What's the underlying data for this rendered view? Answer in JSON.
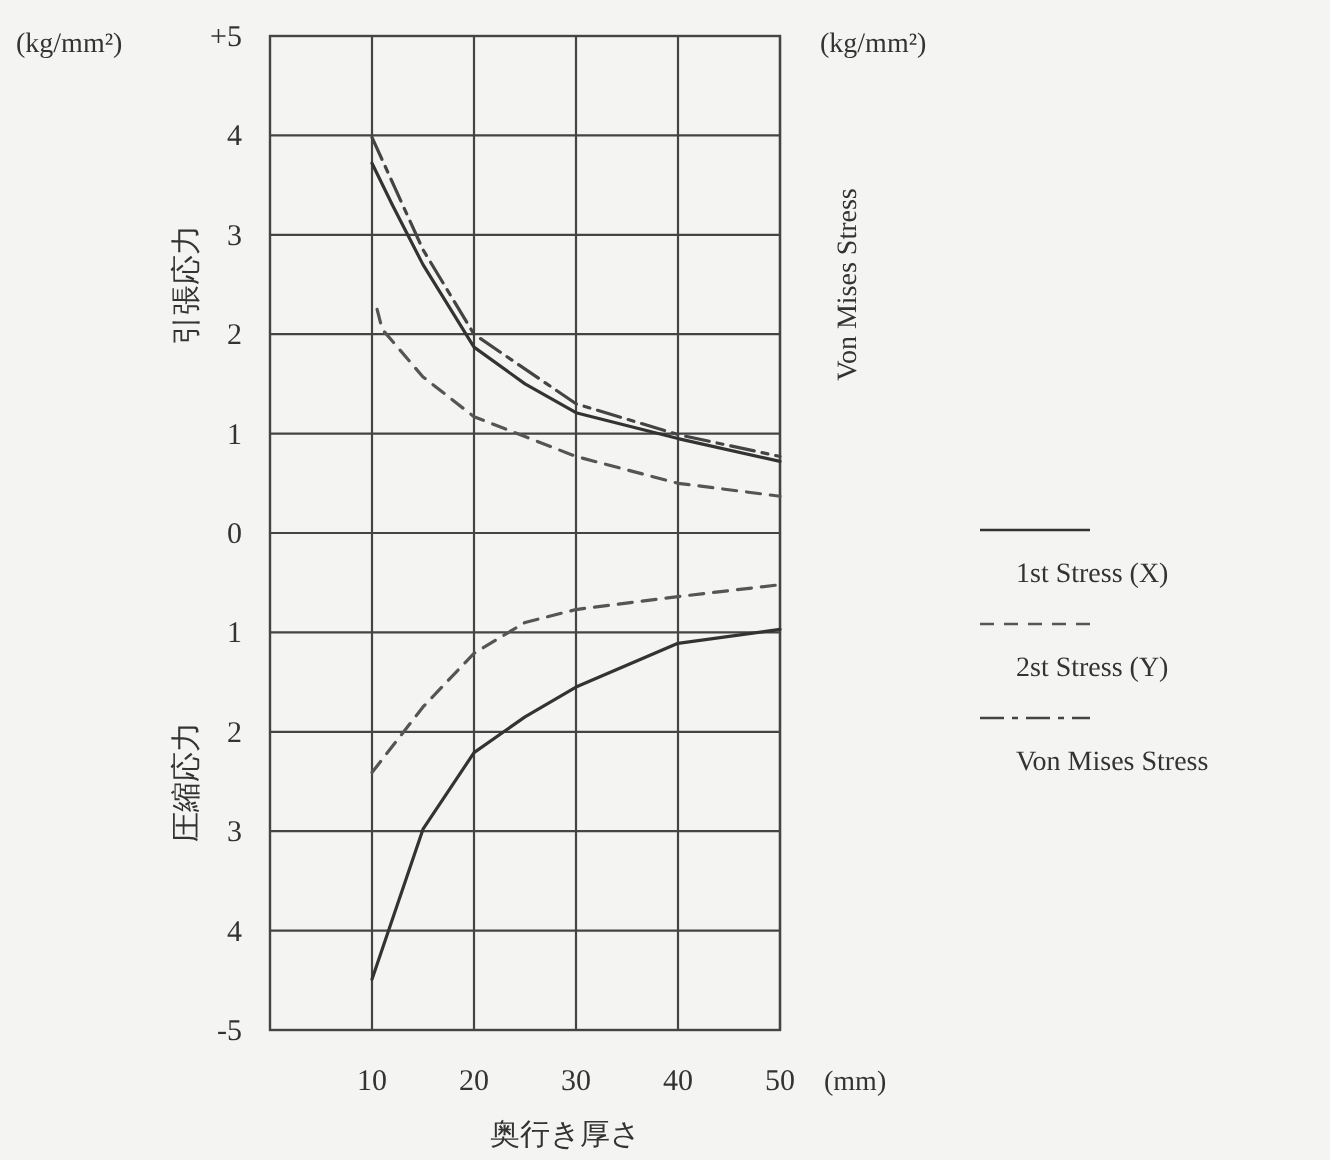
{
  "chart_data": {
    "type": "line",
    "xlabel": "奥行き厚さ",
    "ylabel": "引張応力",
    "y2label": "Von Mises Stress",
    "annotations": [
      "(kg/mm²)",
      "(kg/mm²)",
      "圧縮応力",
      "(mm)"
    ],
    "xlim": [
      0,
      50
    ],
    "xticks": [
      10,
      20,
      30,
      40,
      50
    ],
    "ylim": [
      -5,
      5
    ],
    "yticks": [
      {
        "value": 5,
        "label": "+5"
      },
      4,
      3,
      2,
      1,
      0,
      {
        "value": -1,
        "label": "1"
      },
      {
        "value": -2,
        "label": "2"
      },
      {
        "value": -3,
        "label": "3"
      },
      {
        "value": -4,
        "label": "4"
      },
      -5
    ],
    "grid": true,
    "legend": "right",
    "series": [
      {
        "name": "1st Stress (X)",
        "color": "#333333",
        "line_style": "solid",
        "x": [
          10,
          12,
          15,
          20,
          25,
          30,
          40,
          50
        ],
        "values": [
          3.72,
          3.3,
          2.7,
          1.87,
          1.5,
          1.21,
          0.95,
          0.72
        ]
      },
      {
        "name": "2st Stress (Y)",
        "color": "#555555",
        "line_style": "dashed",
        "x": [
          10.5,
          11,
          15,
          20,
          25,
          30,
          40,
          50
        ],
        "values": [
          2.25,
          2.05,
          1.57,
          1.17,
          0.97,
          0.77,
          0.5,
          0.37
        ]
      },
      {
        "name": "Von Mises Stress",
        "color": "#444444",
        "line_style": "dashdot",
        "x": [
          10,
          15,
          20,
          30,
          40,
          50
        ],
        "values": [
          3.98,
          2.85,
          2.0,
          1.3,
          0.99,
          0.77
        ]
      },
      {
        "color": "#333333",
        "line_style": "solid",
        "x": [
          10,
          15,
          20,
          25,
          30,
          40,
          50
        ],
        "values": [
          -4.49,
          -2.98,
          -2.21,
          -1.85,
          -1.55,
          -1.11,
          -0.97
        ]
      },
      {
        "color": "#555555",
        "line_style": "dashed",
        "x": [
          10,
          15,
          20,
          25,
          30,
          40,
          50
        ],
        "values": [
          -2.41,
          -1.75,
          -1.21,
          -0.9,
          -0.77,
          -0.64,
          -0.52
        ]
      }
    ]
  }
}
